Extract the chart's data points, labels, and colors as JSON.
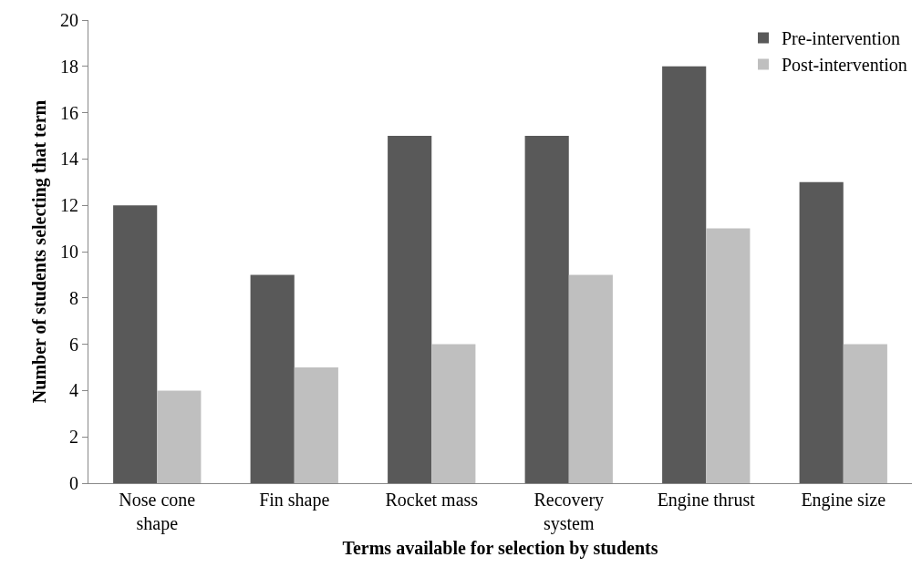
{
  "chart_data": {
    "type": "bar",
    "xlabel": "Terms available for selection by students",
    "ylabel": "Number of students selecting that term",
    "categories": [
      "Nose cone shape",
      "Fin shape",
      "Rocket mass",
      "Recovery system",
      "Engine thrust",
      "Engine size"
    ],
    "series": [
      {
        "name": "Pre-intervention",
        "color": "#595959",
        "values": [
          12,
          9,
          15,
          15,
          18,
          13
        ]
      },
      {
        "name": "Post-intervention",
        "color": "#bfbfbf",
        "values": [
          4,
          5,
          6,
          9,
          11,
          6
        ]
      }
    ],
    "ylim": [
      0,
      20
    ],
    "yticks": [
      0,
      2,
      4,
      6,
      8,
      10,
      12,
      14,
      16,
      18,
      20
    ],
    "grid": false,
    "legend": "top right"
  }
}
